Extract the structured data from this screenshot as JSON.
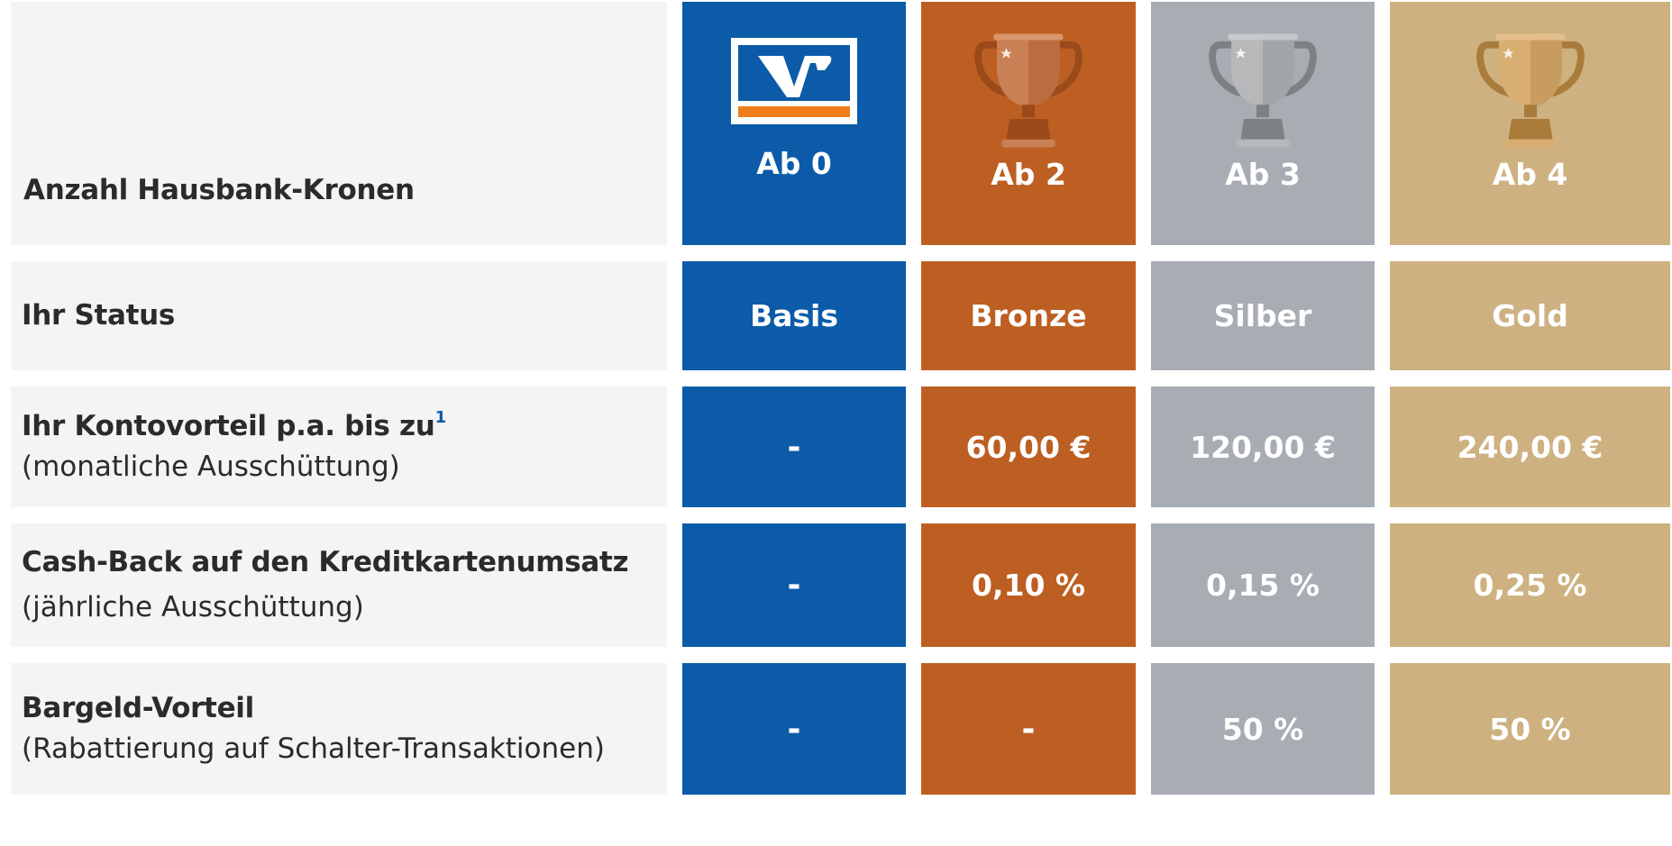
{
  "columns": [
    {
      "key": "basis",
      "crowns": "Ab 0",
      "status": "Basis",
      "konto": "-",
      "cashback": "-",
      "bargeld": "-",
      "color": "#0b5ba8",
      "icon": "vr-bank-logo-icon"
    },
    {
      "key": "bronze",
      "crowns": "Ab 2",
      "status": "Bronze",
      "konto": "60,00 €",
      "cashback": "0,10 %",
      "bargeld": "-",
      "color": "#bd5f22",
      "icon": "bronze-trophy-icon"
    },
    {
      "key": "silber",
      "crowns": "Ab 3",
      "status": "Silber",
      "konto": "120,00 €",
      "cashback": "0,15 %",
      "bargeld": "50 %",
      "color": "#a7adb3",
      "icon": "silver-trophy-icon"
    },
    {
      "key": "gold",
      "crowns": "Ab 4",
      "status": "Gold",
      "konto": "240,00 €",
      "cashback": "0,25 %",
      "bargeld": "50 %",
      "color": "#cdb180",
      "icon": "gold-trophy-icon"
    }
  ],
  "rows": {
    "crowns": {
      "title": "Anzahl Hausbank-Kronen"
    },
    "status": {
      "title": "Ihr Status"
    },
    "konto": {
      "title": "Ihr Kontovorteil p.a. bis zu",
      "footnote": "1",
      "sub": "(monatliche Ausschüttung)"
    },
    "cashback": {
      "title": "Cash-Back auf den Kreditkartenumsatz",
      "sub": "(jährliche Ausschüttung)"
    },
    "bargeld": {
      "title": "Bargeld-Vorteil",
      "sub": "(Rabattierung auf Schalter-Transaktionen)"
    }
  },
  "colors": {
    "label_bg": "#f4f4f4",
    "label_text": "#2b2b2b",
    "footnote": "#0b5ba8",
    "logo_orange": "#ef7d1a"
  }
}
